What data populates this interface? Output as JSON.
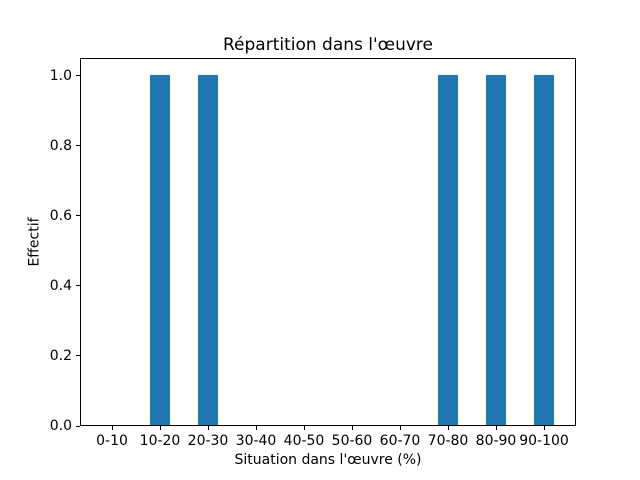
{
  "chart_data": {
    "type": "bar",
    "title": "Répartition dans l'œuvre",
    "xlabel": "Situation dans l'œuvre (%)",
    "ylabel": "Effectif",
    "categories": [
      "0-10",
      "10-20",
      "20-30",
      "30-40",
      "40-50",
      "50-60",
      "60-70",
      "70-80",
      "80-90",
      "90-100"
    ],
    "values": [
      0,
      1,
      1,
      0,
      0,
      0,
      0,
      1,
      1,
      1
    ],
    "y_ticks": [
      "0.0",
      "0.2",
      "0.4",
      "0.6",
      "0.8",
      "1.0"
    ],
    "ylim": [
      0,
      1.05
    ],
    "grid": false,
    "legend": null,
    "colors": {
      "bar": "#1f77b4",
      "axis": "#000000",
      "text": "#000000",
      "background": "#ffffff"
    }
  }
}
